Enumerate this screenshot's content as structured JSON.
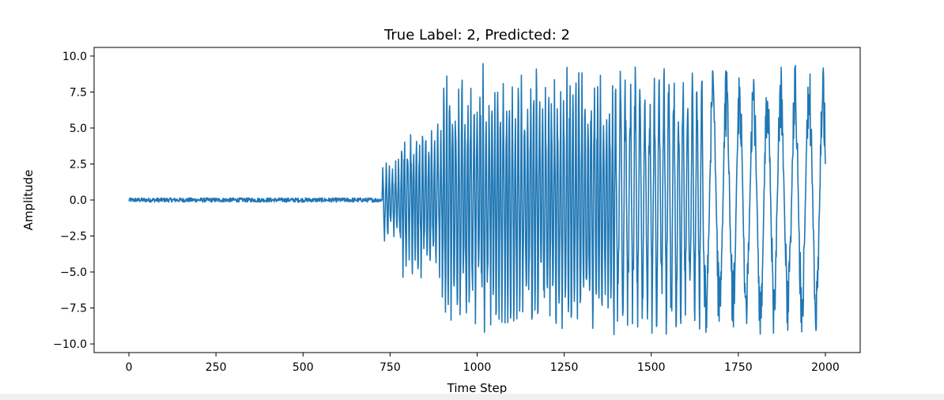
{
  "chart_data": {
    "type": "line",
    "title": "True Label: 2, Predicted: 2",
    "xlabel": "Time Step",
    "ylabel": "Amplitude",
    "xlim": [
      -100,
      2100
    ],
    "ylim": [
      -10.6,
      10.6
    ],
    "xticks": [
      0,
      250,
      500,
      750,
      1000,
      1250,
      1500,
      1750,
      2000
    ],
    "yticks": [
      10.0,
      7.5,
      5.0,
      2.5,
      0.0,
      -2.5,
      -5.0,
      -7.5,
      -10.0
    ],
    "ytick_labels": [
      "10.0",
      "7.5",
      "5.0",
      "2.5",
      "0.0",
      "−2.5",
      "−5.0",
      "−7.5",
      "−10.0"
    ],
    "grid": false,
    "legend": "none",
    "series": [
      {
        "color": "#1f77b4",
        "x_range": [
          0,
          2000
        ],
        "n_points": 2001,
        "segments": [
          {
            "from": 0,
            "to": 728,
            "envelope": 0.15,
            "description_free": true
          },
          {
            "from": 728,
            "to": 780,
            "envelope": 3.0
          },
          {
            "from": 780,
            "to": 900,
            "envelope": 5.5
          },
          {
            "from": 900,
            "to": 1400,
            "envelope": 9.5
          },
          {
            "from": 1400,
            "to": 1650,
            "envelope": 9.5
          },
          {
            "from": 1650,
            "to": 2000,
            "envelope": 9.8
          }
        ],
        "final_value": 2.5
      }
    ]
  }
}
